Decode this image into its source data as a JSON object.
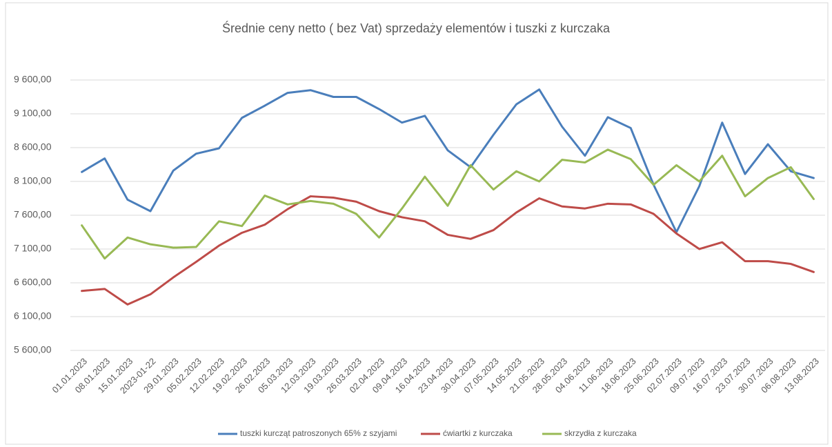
{
  "chart_data": {
    "type": "line",
    "title": "Średnie ceny netto ( bez Vat) sprzedaży elementów i tuszki z kurczaka",
    "categories": [
      "01.01.2023",
      "08.01.2023",
      "15.01.2023",
      "2023-01-22",
      "29.01.2023",
      "05.02.2023",
      "12.02.2023",
      "19.02.2023",
      "26.02.2023",
      "05.03.2023",
      "12.03.2023",
      "19.03.2023",
      "26.03.2023",
      "02.04.2023",
      "09.04.2023",
      "16.04.2023",
      "23.04.2023",
      "30.04.2023",
      "07.05.2023",
      "14.05.2023",
      "21.05.2023",
      "28.05.2023",
      "04.06.2023",
      "11.06.2023",
      "18.06.2023",
      "25.06.2023",
      "02.07.2023",
      "09.07.2023",
      "16.07.2023",
      "23.07.2023",
      "30.07.2023",
      "06.08.2023",
      "13.08.2023"
    ],
    "series": [
      {
        "name": "tuszki kurcząt patroszonych 65% z szyjami",
        "color": "#4a7ebb",
        "values": [
          8240,
          8440,
          7830,
          7660,
          8260,
          8510,
          8590,
          9040,
          9220,
          9410,
          9450,
          9350,
          9350,
          9170,
          8970,
          9070,
          8560,
          8310,
          8790,
          9240,
          9460,
          8910,
          8480,
          9050,
          8890,
          8050,
          7350,
          8030,
          8970,
          8210,
          8650,
          8250,
          8150
        ]
      },
      {
        "name": "ćwiartki z kurczaka",
        "color": "#be4b48",
        "values": [
          6480,
          6510,
          6280,
          6430,
          6680,
          6910,
          7150,
          7340,
          7460,
          7690,
          7880,
          7860,
          7800,
          7660,
          7570,
          7510,
          7310,
          7250,
          7380,
          7640,
          7850,
          7730,
          7700,
          7770,
          7760,
          7620,
          7330,
          7100,
          7200,
          6920,
          6920,
          6880,
          6760
        ]
      },
      {
        "name": "skrzydła z kurczaka",
        "color": "#98b954",
        "values": [
          7450,
          6960,
          7270,
          7170,
          7120,
          7130,
          7510,
          7440,
          7890,
          7760,
          7810,
          7770,
          7620,
          7270,
          7700,
          8170,
          7740,
          8340,
          7980,
          8250,
          8100,
          8420,
          8380,
          8570,
          8430,
          8050,
          8340,
          8100,
          8480,
          7880,
          8150,
          8310,
          7840
        ]
      }
    ],
    "ylim": [
      5600,
      9600
    ],
    "yticks": [
      {
        "value": 5600,
        "label": "5 600,00"
      },
      {
        "value": 6100,
        "label": "6 100,00"
      },
      {
        "value": 6600,
        "label": "6 600,00"
      },
      {
        "value": 7100,
        "label": "7 100,00"
      },
      {
        "value": 7600,
        "label": "7 600,00"
      },
      {
        "value": 8100,
        "label": "8 100,00"
      },
      {
        "value": 8600,
        "label": "8 600,00"
      },
      {
        "value": 9100,
        "label": "9 100,00"
      },
      {
        "value": 9600,
        "label": "9 600,00"
      }
    ],
    "grid": true,
    "legend": "bottom"
  }
}
